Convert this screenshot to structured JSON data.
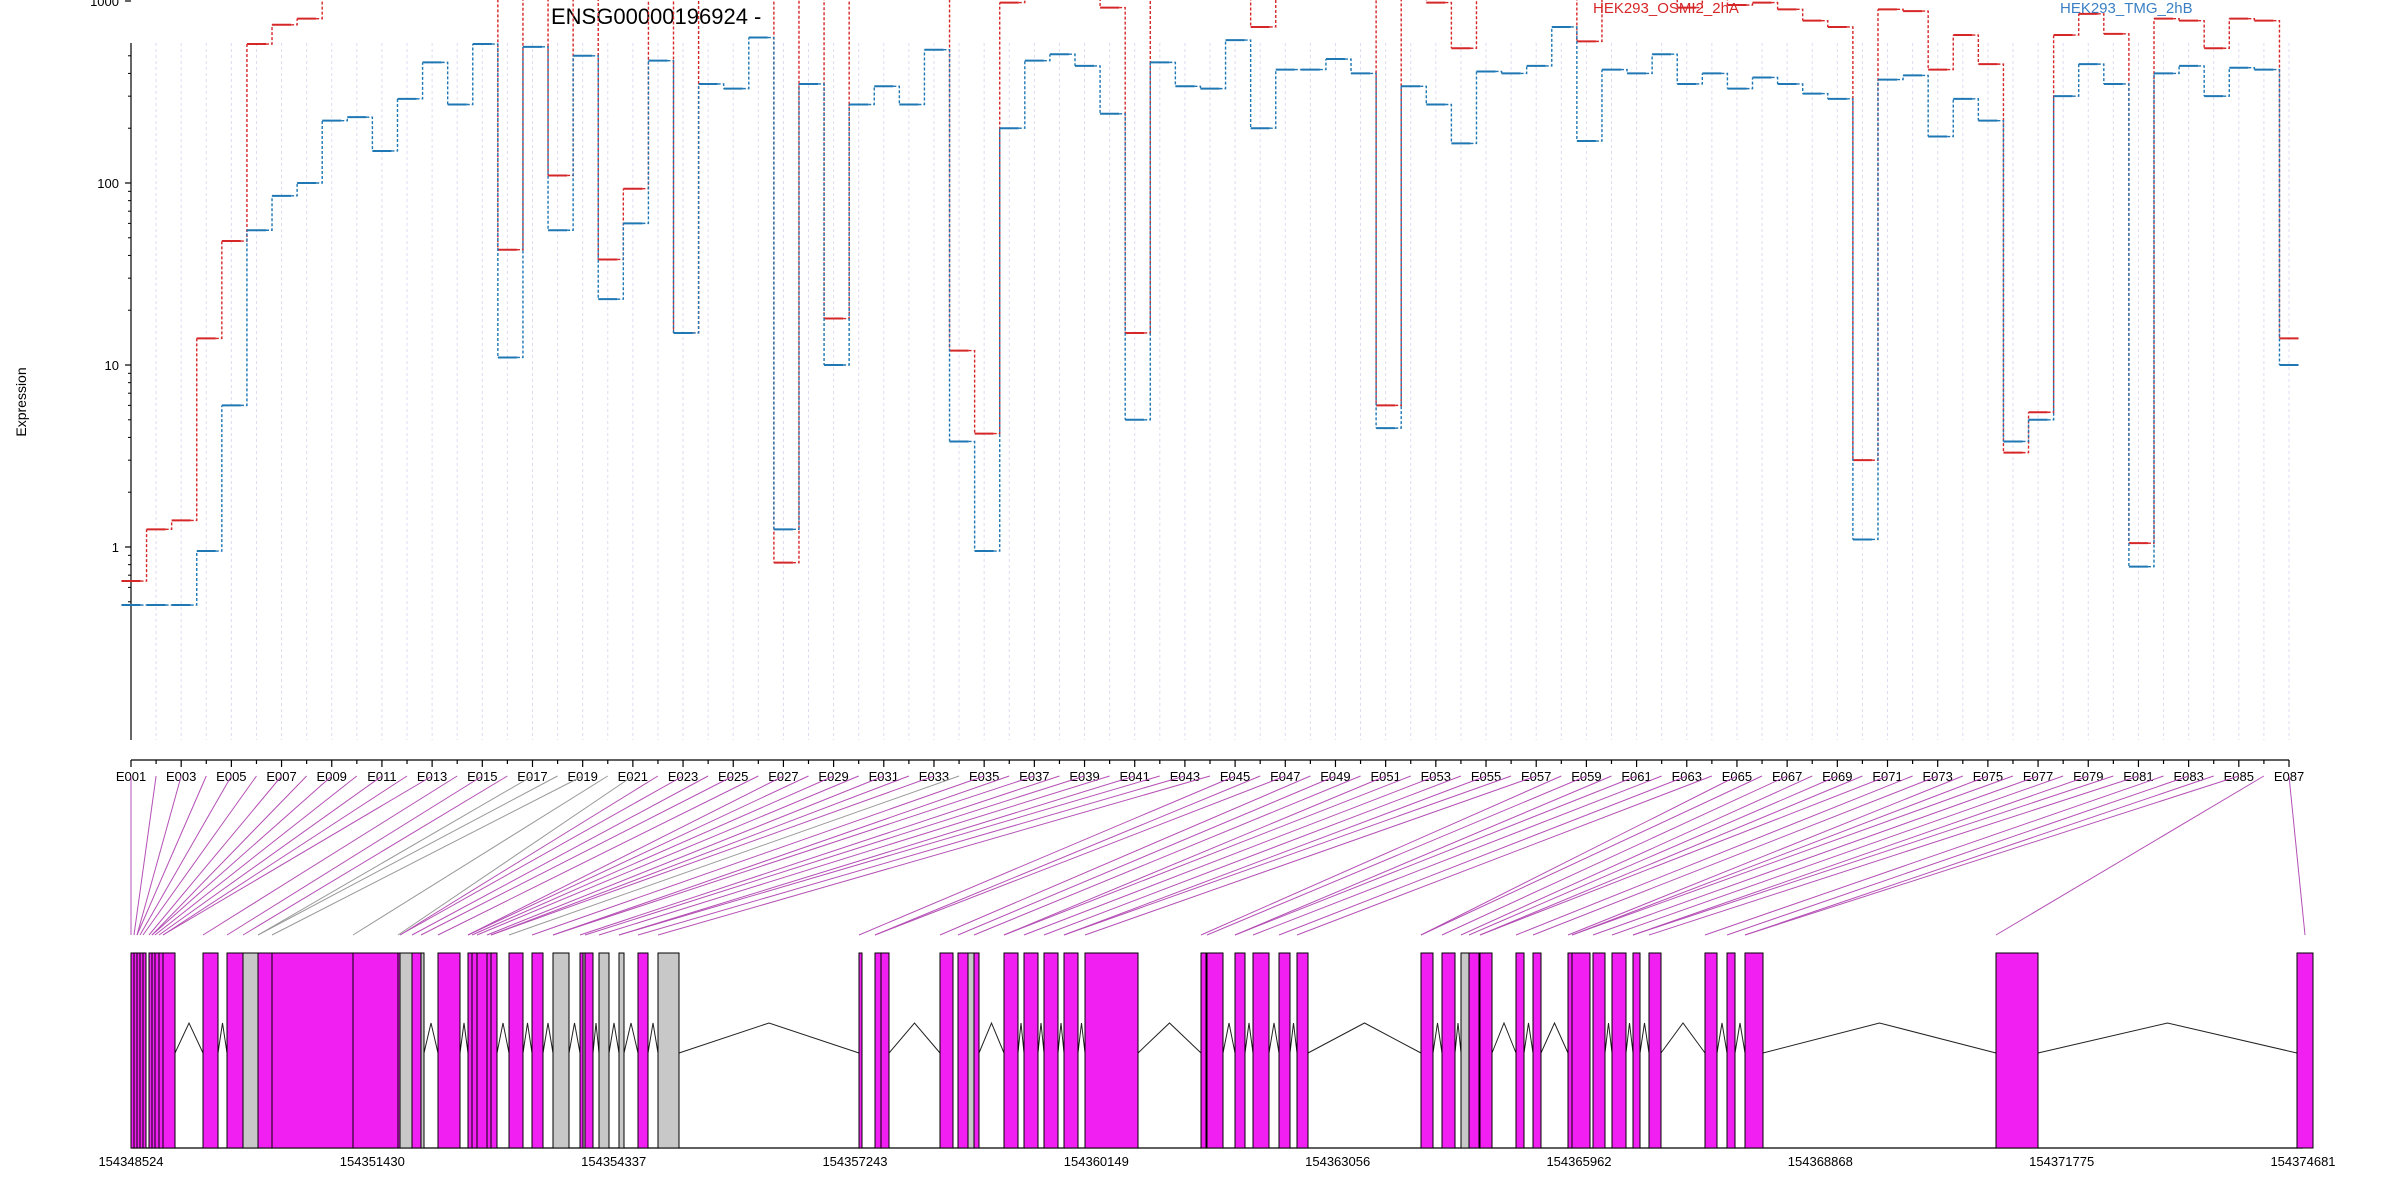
{
  "chart_data": {
    "type": "line",
    "title": "ENSG00000196924 -",
    "ylabel": "Expression",
    "yscale": "log",
    "y_ticks": [
      "1",
      "10",
      "100",
      "1000"
    ],
    "y_tick_values": [
      1,
      10,
      100,
      1000
    ],
    "ylim": [
      0.4,
      6000
    ],
    "legend_placement": "top",
    "categories": [
      "E001",
      "E002",
      "E003",
      "E004",
      "E005",
      "E006",
      "E007",
      "E008",
      "E009",
      "E010",
      "E011",
      "E012",
      "E013",
      "E014",
      "E015",
      "E016",
      "E017",
      "E018",
      "E019",
      "E020",
      "E021",
      "E022",
      "E023",
      "E024",
      "E025",
      "E026",
      "E027",
      "E028",
      "E029",
      "E030",
      "E031",
      "E032",
      "E033",
      "E034",
      "E035",
      "E036",
      "E037",
      "E038",
      "E039",
      "E040",
      "E041",
      "E042",
      "E043",
      "E044",
      "E045",
      "E046",
      "E047",
      "E048",
      "E049",
      "E050",
      "E051",
      "E052",
      "E053",
      "E054",
      "E055",
      "E056",
      "E057",
      "E058",
      "E059",
      "E060",
      "E061",
      "E062",
      "E063",
      "E064",
      "E065",
      "E066",
      "E067",
      "E068",
      "E069",
      "E070",
      "E071",
      "E072",
      "E073",
      "E074",
      "E075",
      "E076",
      "E077",
      "E078",
      "E079",
      "E080",
      "E081",
      "E082",
      "E083",
      "E084",
      "E085",
      "E086",
      "E087"
    ],
    "x_tick_labels": [
      "E001",
      "E003",
      "E005",
      "E007",
      "E009",
      "E011",
      "E013",
      "E015",
      "E017",
      "E019",
      "E021",
      "E023",
      "E025",
      "E027",
      "E029",
      "E031",
      "E033",
      "E035",
      "E037",
      "E039",
      "E041",
      "E043",
      "E045",
      "E047",
      "E049",
      "E051",
      "E053",
      "E055",
      "E057",
      "E059",
      "E061",
      "E063",
      "E065",
      "E067",
      "E069",
      "E071",
      "E073",
      "E075",
      "E077",
      "E079",
      "E081",
      "E083",
      "E085",
      "E087"
    ],
    "series": [
      {
        "name": "HEK293_OSMI2_2hA",
        "color": "#d62728",
        "values": [
          0.65,
          1.25,
          1.4,
          14,
          48,
          580,
          740,
          800,
          2150,
          2200,
          1300,
          2900,
          4500,
          2150,
          4600,
          43,
          4100,
          110,
          3200,
          38,
          93,
          2700,
          15,
          2150,
          2200,
          3700,
          0.82,
          1950,
          18,
          1550,
          1850,
          1450,
          2600,
          12,
          4.2,
          980,
          2300,
          2250,
          1700,
          920,
          15,
          1850,
          1450,
          1550,
          2500,
          720,
          1550,
          1550,
          1750,
          1550,
          6,
          1250,
          980,
          550,
          1450,
          1400,
          1450,
          2500,
          600,
          1300,
          1050,
          1300,
          920,
          1100,
          950,
          980,
          900,
          780,
          720,
          3,
          900,
          880,
          420,
          650,
          450,
          3.3,
          5.5,
          650,
          850,
          660,
          1.05,
          800,
          780,
          550,
          800,
          780,
          14
        ]
      },
      {
        "name": "HEK293_TMG_2hB",
        "color": "#1f77b4",
        "values": [
          0.48,
          0.48,
          0.48,
          0.95,
          6,
          55,
          85,
          100,
          220,
          230,
          150,
          290,
          460,
          270,
          580,
          11,
          560,
          55,
          500,
          23,
          60,
          470,
          15,
          350,
          330,
          630,
          1.25,
          350,
          10,
          270,
          340,
          270,
          540,
          3.8,
          0.95,
          200,
          470,
          510,
          440,
          240,
          5,
          460,
          340,
          330,
          610,
          200,
          420,
          420,
          480,
          400,
          4.5,
          340,
          270,
          165,
          410,
          400,
          440,
          720,
          170,
          420,
          400,
          510,
          350,
          400,
          330,
          380,
          350,
          310,
          290,
          1.1,
          370,
          390,
          180,
          290,
          220,
          3.8,
          5,
          300,
          450,
          350,
          0.78,
          400,
          440,
          300,
          430,
          420,
          10
        ]
      }
    ]
  },
  "gene_track": {
    "coordinate_labels": [
      "154348524",
      "154351430",
      "154354337",
      "154357243",
      "154360149",
      "154363056",
      "154365962",
      "154368868",
      "154371775",
      "154374681"
    ],
    "exon_color": "#f21ff2",
    "intron_retention_color": "#c8c8c8",
    "connector_color": "#b550b5"
  }
}
